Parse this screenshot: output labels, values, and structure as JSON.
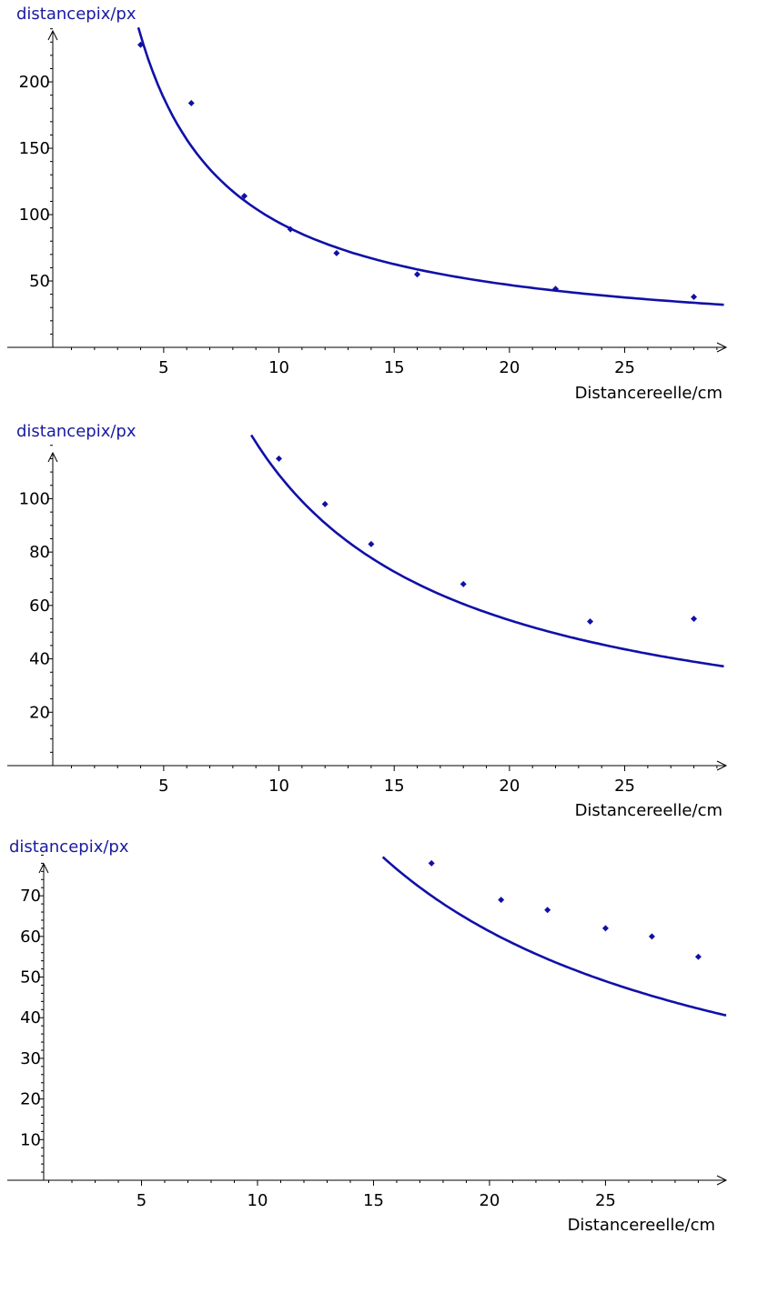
{
  "colors": {
    "series": "#1010a8",
    "axis_title_y": "#1a1aa0",
    "axis": "#000000"
  },
  "chart_data": [
    {
      "type": "scatter",
      "ylabel": "distancepix/px",
      "xlabel": "Distancereelle/cm",
      "xlim": [
        -2.1,
        29.4
      ],
      "ylim": [
        0,
        248
      ],
      "xticks": [
        5,
        10,
        15,
        20,
        25
      ],
      "yticks": [
        50,
        100,
        150,
        200
      ],
      "grid": false,
      "series": [
        {
          "points": [
            [
              4,
              228
            ],
            [
              6.2,
              184
            ],
            [
              8.5,
              114
            ],
            [
              10.5,
              89
            ],
            [
              12.5,
              71
            ],
            [
              16,
              55
            ],
            [
              22,
              44
            ],
            [
              28,
              38
            ]
          ],
          "fit": {
            "type": "reciprocal",
            "k": 940,
            "x_range": [
              3.9,
              29.3
            ]
          }
        }
      ]
    },
    {
      "type": "scatter",
      "ylabel": "distancepix/px",
      "xlabel": "Distancereelle/cm",
      "xlim": [
        -2.1,
        29.4
      ],
      "ylim": [
        0,
        124
      ],
      "xticks": [
        5,
        10,
        15,
        20,
        25
      ],
      "yticks": [
        20,
        40,
        60,
        80,
        100
      ],
      "grid": false,
      "series": [
        {
          "points": [
            [
              10,
              115
            ],
            [
              12,
              98
            ],
            [
              14,
              83
            ],
            [
              18,
              68
            ],
            [
              23.5,
              54
            ],
            [
              28,
              55
            ]
          ],
          "fit": {
            "type": "reciprocal",
            "k": 1090,
            "x_range": [
              8.8,
              29.3
            ]
          }
        }
      ]
    },
    {
      "type": "scatter",
      "ylabel": "distancepix/px",
      "xlabel": "Distancereelle/cm",
      "xlim": [
        -1.1,
        30.2
      ],
      "ylim": [
        0,
        81
      ],
      "xticks": [
        5,
        10,
        15,
        20,
        25
      ],
      "yticks": [
        10,
        20,
        30,
        40,
        50,
        60,
        70
      ],
      "grid": false,
      "series": [
        {
          "points": [
            [
              17.5,
              78
            ],
            [
              20.5,
              69
            ],
            [
              22.5,
              66.5
            ],
            [
              25,
              62
            ],
            [
              27,
              60
            ],
            [
              29,
              55
            ]
          ],
          "fit": {
            "type": "reciprocal",
            "k": 1225,
            "x_range": [
              15.4,
              30.2
            ]
          }
        }
      ]
    }
  ]
}
